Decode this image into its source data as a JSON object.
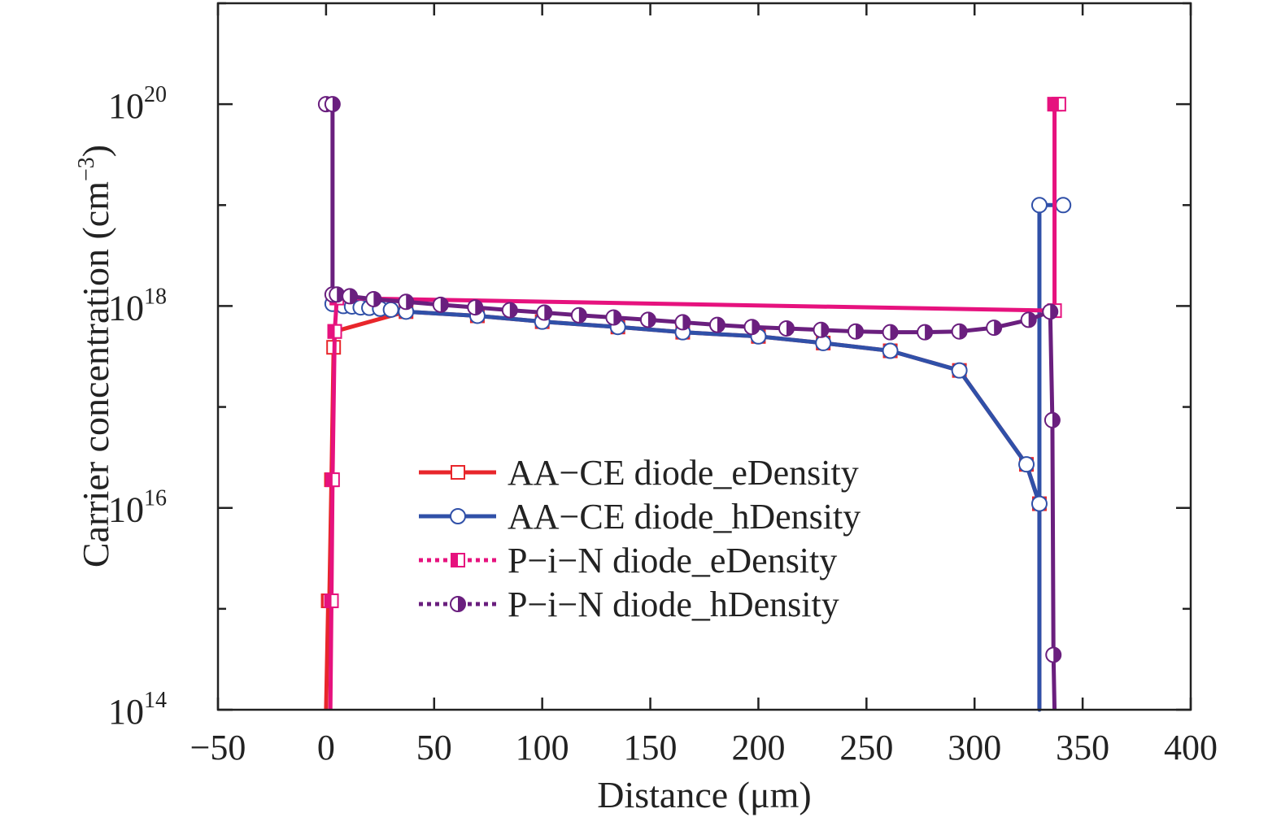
{
  "chart_data": {
    "type": "line",
    "title": "",
    "xlabel": "Distance (μm)",
    "ylabel": "Carrier concentration (cm⁻³)",
    "ylabel_main": "Carrier concentration (cm",
    "ylabel_sup": "−3",
    "ylabel_close": ")",
    "xlim": [
      -50,
      400
    ],
    "ylim": [
      100000000000000.0,
      1e+21
    ],
    "yscale": "log",
    "grid": false,
    "legend_position": "center",
    "x_ticks": [
      -50,
      0,
      50,
      100,
      150,
      200,
      250,
      300,
      350,
      400
    ],
    "x_tick_labels": [
      "−50",
      "0",
      "50",
      "100",
      "150",
      "200",
      "250",
      "300",
      "350",
      "400"
    ],
    "y_ticks": [
      {
        "value": 100000000000000.0,
        "base": "10",
        "exp": "14"
      },
      {
        "value": 1e+16,
        "base": "10",
        "exp": "16"
      },
      {
        "value": 1e+18,
        "base": "10",
        "exp": "18"
      },
      {
        "value": 1e+20,
        "base": "10",
        "exp": "20"
      }
    ],
    "series": [
      {
        "name": "AA−CE diode_eDensity",
        "color": "#e8262b",
        "line": "solid",
        "marker": "open-square",
        "x": [
          0,
          1,
          1.5,
          2.5,
          3.5,
          4,
          37,
          70,
          100,
          135,
          165,
          200,
          230,
          261,
          293,
          324,
          330,
          330
        ],
        "y": [
          100000000000000.0,
          1200000000000000.0,
          1200000000000000.0,
          1.9e+16,
          3.9e+17,
          5.6e+17,
          8.8e+17,
          8e+17,
          7e+17,
          6.2e+17,
          5.5e+17,
          5e+17,
          4.3e+17,
          3.6e+17,
          2.3e+17,
          2.7e+16,
          1.1e+16,
          100000000000000.0
        ]
      },
      {
        "name": "AA−CE diode_hDensity",
        "color": "#3050a8",
        "line": "solid",
        "marker": "open-circle",
        "x": [
          3,
          8,
          12,
          16,
          20,
          25,
          30,
          37,
          70,
          100,
          135,
          165,
          200,
          230,
          261,
          293,
          324,
          330,
          330,
          330,
          341
        ],
        "y": [
          1.05e+18,
          1e+18,
          9.9e+17,
          9.7e+17,
          9.6e+17,
          9.4e+17,
          9.2e+17,
          8.8e+17,
          8e+17,
          7e+17,
          6.2e+17,
          5.5e+17,
          5e+17,
          4.3e+17,
          3.6e+17,
          2.3e+17,
          2.7e+16,
          1.1e+16,
          100000000000000.0,
          1e+19,
          1e+19
        ]
      },
      {
        "name": "P−i−N diode_eDensity",
        "color": "#e6127e",
        "line": "dotted",
        "marker": "half-square",
        "x": [
          2,
          2.5,
          3,
          4,
          5,
          337,
          337,
          339
        ],
        "y": [
          100000000000000.0,
          1200000000000000.0,
          1.9e+16,
          5.6e+17,
          1.2e+18,
          9e+17,
          1e+20,
          1e+20
        ]
      },
      {
        "name": "P−i−N diode_hDensity",
        "color": "#6a1f7e",
        "line": "dotted",
        "marker": "half-circle",
        "x": [
          0,
          3,
          3,
          5,
          11,
          22,
          37,
          53,
          69,
          85,
          101,
          117,
          133,
          149,
          165,
          181,
          197,
          213,
          229,
          245,
          261,
          277,
          293,
          309,
          325,
          335,
          336,
          336.5,
          337
        ],
        "y": [
          1e+20,
          1e+20,
          1.3e+18,
          1.3e+18,
          1.25e+18,
          1.17e+18,
          1.1e+18,
          1.03e+18,
          9.7e+17,
          9.1e+17,
          8.6e+17,
          8.1e+17,
          7.7e+17,
          7.3e+17,
          6.9e+17,
          6.5e+17,
          6.2e+17,
          6e+17,
          5.8e+17,
          5.6e+17,
          5.5e+17,
          5.5e+17,
          5.6e+17,
          6.1e+17,
          7.3e+17,
          8.8e+17,
          7.4e+16,
          350000000000000.0,
          100000000000000.0
        ]
      }
    ]
  }
}
